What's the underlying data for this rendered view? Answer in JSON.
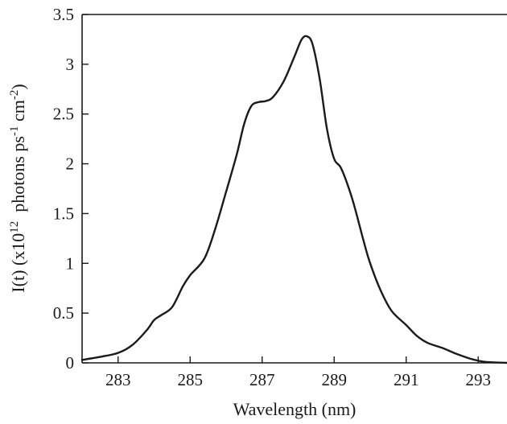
{
  "chart_data": {
    "type": "line",
    "title": "",
    "xlabel": "Wavelength (nm)",
    "ylabel": {
      "prefix": "I(t) (x10",
      "exp1": "12",
      "mid1": "  photons ps",
      "exp2": "-1",
      "mid2": " cm",
      "exp3": "-2",
      "suffix": ")"
    },
    "xlim": [
      282.0,
      293.8
    ],
    "ylim": [
      0,
      3.5
    ],
    "xticks": [
      283,
      285,
      287,
      289,
      291,
      293
    ],
    "xtick_labels": [
      "283",
      "285",
      "287",
      "289",
      "291",
      "293"
    ],
    "yticks": [
      0,
      0.5,
      1,
      1.5,
      2,
      2.5,
      3,
      3.5
    ],
    "ytick_labels": [
      "0",
      "0.5",
      "1",
      "1.5",
      "2",
      "2.5",
      "3",
      "3.5"
    ],
    "grid": false,
    "series": [
      {
        "x": [
          282.0,
          282.5,
          283.0,
          283.4,
          283.8,
          284.0,
          284.2,
          284.5,
          284.8,
          285.0,
          285.4,
          285.7,
          286.0,
          286.3,
          286.5,
          286.7,
          286.9,
          287.1,
          287.3,
          287.6,
          287.9,
          288.1,
          288.25,
          288.4,
          288.6,
          288.8,
          289.0,
          289.2,
          289.5,
          289.8,
          290.0,
          290.3,
          290.6,
          291.0,
          291.3,
          291.6,
          292.0,
          292.4,
          292.8,
          293.2,
          293.8
        ],
        "y": [
          0.03,
          0.06,
          0.1,
          0.18,
          0.33,
          0.43,
          0.48,
          0.56,
          0.77,
          0.88,
          1.05,
          1.35,
          1.72,
          2.1,
          2.4,
          2.58,
          2.62,
          2.63,
          2.67,
          2.83,
          3.08,
          3.25,
          3.28,
          3.2,
          2.85,
          2.35,
          2.05,
          1.95,
          1.65,
          1.25,
          1.0,
          0.72,
          0.52,
          0.38,
          0.27,
          0.2,
          0.15,
          0.09,
          0.04,
          0.01,
          0.0
        ]
      }
    ]
  }
}
